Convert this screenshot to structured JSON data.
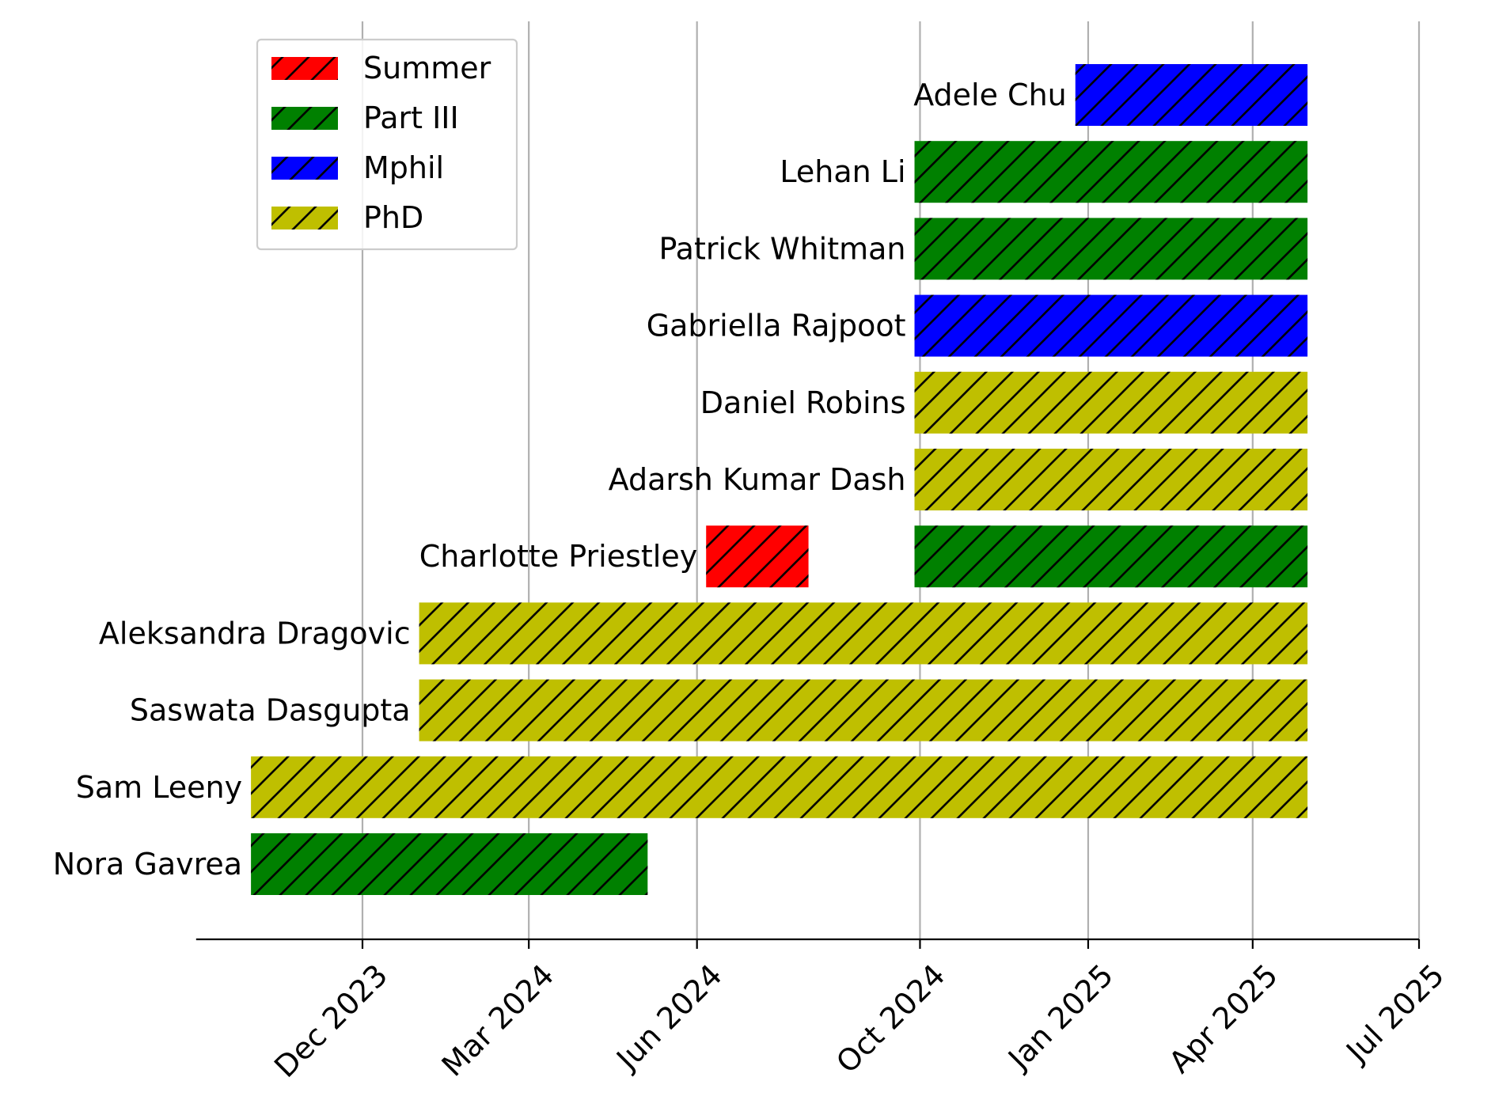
{
  "chart_data": {
    "type": "gantt",
    "x_axis": {
      "type": "date",
      "range": [
        "2023-09-01",
        "2025-07-01"
      ],
      "ticks": [
        {
          "date": "2023-12-01",
          "label": "Dec 2023"
        },
        {
          "date": "2024-03-01",
          "label": "Mar 2024"
        },
        {
          "date": "2024-06-01",
          "label": "Jun 2024"
        },
        {
          "date": "2024-10-01",
          "label": "Oct 2024"
        },
        {
          "date": "2025-01-01",
          "label": "Jan 2025"
        },
        {
          "date": "2025-04-01",
          "label": "Apr 2025"
        },
        {
          "date": "2025-07-01",
          "label": "Jul 2025"
        }
      ],
      "grid": true,
      "tick_label_rotation": 45
    },
    "categories_colors": {
      "Summer": "#ff0000",
      "Part III": "#008000",
      "Mphil": "#0000ff",
      "PhD": "#bfbf00"
    },
    "legend": {
      "position": "top-left",
      "entries": [
        "Summer",
        "Part III",
        "Mphil",
        "PhD"
      ]
    },
    "rows": [
      {
        "name": "Adele Chu",
        "bars": [
          {
            "start": "2024-12-25",
            "end": "2025-05-01",
            "category": "Mphil"
          }
        ]
      },
      {
        "name": "Lehan Li",
        "bars": [
          {
            "start": "2024-09-28",
            "end": "2025-05-01",
            "category": "Part III"
          }
        ]
      },
      {
        "name": "Patrick Whitman",
        "bars": [
          {
            "start": "2024-09-28",
            "end": "2025-05-01",
            "category": "Part III"
          }
        ]
      },
      {
        "name": "Gabriella Rajpoot",
        "bars": [
          {
            "start": "2024-09-28",
            "end": "2025-05-01",
            "category": "Mphil"
          }
        ]
      },
      {
        "name": "Daniel Robins",
        "bars": [
          {
            "start": "2024-09-28",
            "end": "2025-05-01",
            "category": "PhD"
          }
        ]
      },
      {
        "name": "Adarsh Kumar Dash",
        "bars": [
          {
            "start": "2024-09-28",
            "end": "2025-05-01",
            "category": "PhD"
          }
        ]
      },
      {
        "name": "Charlotte Priestley",
        "bars": [
          {
            "start": "2024-06-06",
            "end": "2024-08-01",
            "category": "Summer"
          },
          {
            "start": "2024-09-28",
            "end": "2025-05-01",
            "category": "Part III"
          }
        ]
      },
      {
        "name": "Aleksandra Dragovic",
        "bars": [
          {
            "start": "2024-01-01",
            "end": "2025-05-01",
            "category": "PhD"
          }
        ]
      },
      {
        "name": "Saswata Dasgupta",
        "bars": [
          {
            "start": "2024-01-01",
            "end": "2025-05-01",
            "category": "PhD"
          }
        ]
      },
      {
        "name": "Sam Leeny",
        "bars": [
          {
            "start": "2023-10-01",
            "end": "2025-05-01",
            "category": "PhD"
          }
        ]
      },
      {
        "name": "Nora Gavrea",
        "bars": [
          {
            "start": "2023-10-01",
            "end": "2024-05-05",
            "category": "Part III"
          }
        ]
      }
    ]
  }
}
